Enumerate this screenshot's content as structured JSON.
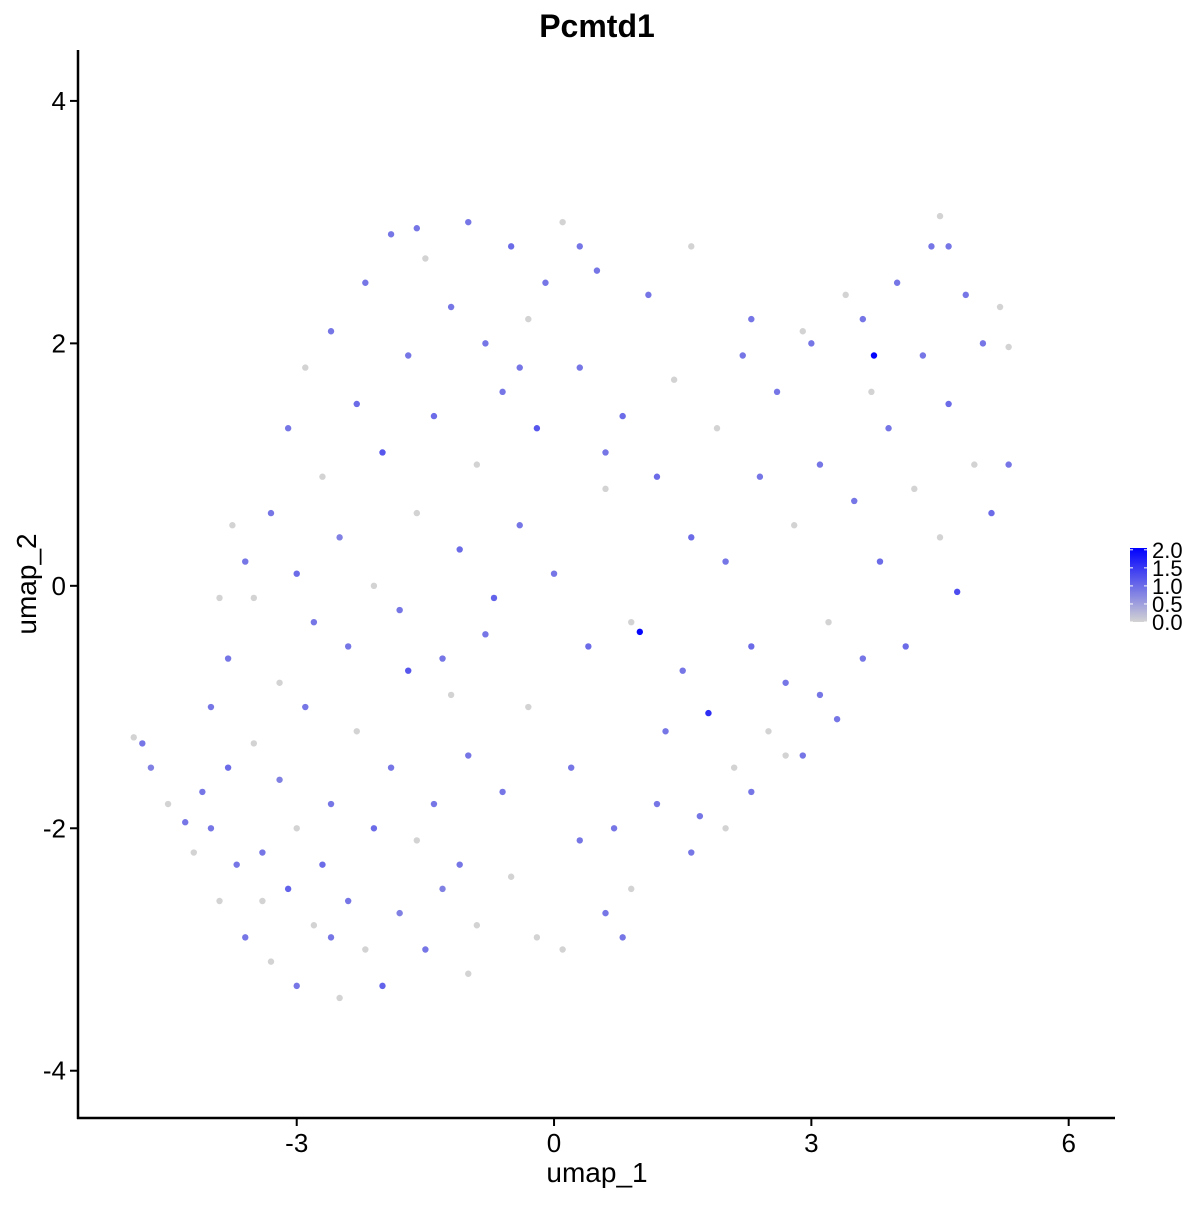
{
  "chart_data": {
    "type": "scatter",
    "title": "Pcmtd1",
    "xlabel": "umap_1",
    "ylabel": "umap_2",
    "x": [
      -4.8,
      -4.9,
      -4.7,
      -4.5,
      -4.2,
      -4.1,
      -4.0,
      -3.9,
      -3.8,
      -3.7,
      -3.6,
      -3.5,
      -3.4,
      -3.3,
      -3.2,
      -3.1,
      -3.0,
      -3.0,
      -2.9,
      -2.8,
      -2.7,
      -2.6,
      -2.5,
      -2.4,
      -2.3,
      -2.2,
      -2.1,
      -2.0,
      -1.9,
      -1.8,
      -1.7,
      -1.6,
      -1.5,
      -1.4,
      -1.3,
      -1.2,
      -1.1,
      -1.0,
      -0.9,
      -0.8,
      -3.8,
      -3.6,
      -3.5,
      -3.3,
      -3.2,
      -3.1,
      -3.0,
      -2.9,
      -2.8,
      -2.7,
      -2.6,
      -2.5,
      -2.4,
      -2.3,
      -2.2,
      -2.1,
      -2.0,
      -1.9,
      -1.8,
      -1.7,
      -1.6,
      -1.5,
      -1.4,
      -1.3,
      -1.2,
      -1.1,
      -1.0,
      -0.9,
      -0.8,
      -0.7,
      -0.6,
      -0.5,
      -0.4,
      -0.3,
      -0.2,
      -0.1,
      0.0,
      0.1,
      0.2,
      0.3,
      0.4,
      0.5,
      0.6,
      0.7,
      0.8,
      0.9,
      1.0,
      1.1,
      1.2,
      1.3,
      1.4,
      1.5,
      1.6,
      1.7,
      1.8,
      1.9,
      2.0,
      2.1,
      2.2,
      2.3,
      2.4,
      2.5,
      2.6,
      2.7,
      2.8,
      2.9,
      3.0,
      3.1,
      3.2,
      3.3,
      3.4,
      3.5,
      3.6,
      3.7,
      3.73,
      3.8,
      3.9,
      4.0,
      4.1,
      4.2,
      4.3,
      4.4,
      4.5,
      4.6,
      4.7,
      4.8,
      4.9,
      5.0,
      5.1,
      5.2,
      5.3,
      4.5,
      4.6,
      3.6,
      2.9,
      5.3,
      -0.5,
      -0.2,
      0.1,
      0.3,
      0.6,
      0.9,
      1.2,
      1.6,
      2.0,
      2.3,
      2.7,
      3.1,
      0.8,
      -1.0,
      -0.6,
      -2.6,
      -3.4,
      -4.3,
      -3.9,
      -4.0,
      -3.75,
      -0.3,
      -1.6,
      0.3,
      1.6,
      0.6,
      -0.4,
      2.3
    ],
    "y": [
      -1.3,
      -1.25,
      -1.5,
      -1.8,
      -2.2,
      -1.7,
      -2.0,
      -2.6,
      -1.5,
      -2.3,
      -2.9,
      -1.3,
      -2.2,
      -3.1,
      -1.6,
      -2.5,
      -2.0,
      -3.3,
      -1.0,
      -2.8,
      -2.3,
      -1.8,
      -3.4,
      -2.6,
      -1.2,
      -3.0,
      -2.0,
      -3.3,
      -1.5,
      -2.7,
      -0.7,
      -2.1,
      -3.0,
      -1.8,
      -2.5,
      -0.9,
      -2.3,
      -1.4,
      -2.8,
      -0.4,
      -0.6,
      0.2,
      -0.1,
      0.6,
      -0.8,
      1.3,
      0.1,
      1.8,
      -0.3,
      0.9,
      2.1,
      0.4,
      -0.5,
      1.5,
      2.5,
      0.0,
      1.1,
      2.9,
      -0.2,
      1.9,
      0.6,
      2.7,
      1.4,
      -0.6,
      2.3,
      0.3,
      3.0,
      1.0,
      2.0,
      -0.1,
      1.6,
      2.8,
      0.5,
      -1.0,
      1.3,
      2.5,
      0.1,
      3.0,
      -1.5,
      1.8,
      -0.5,
      2.6,
      0.8,
      -2.0,
      1.4,
      -0.3,
      -0.38,
      2.4,
      0.9,
      -1.2,
      1.7,
      -0.7,
      0.4,
      -1.9,
      -1.05,
      1.3,
      0.2,
      -1.5,
      1.9,
      -0.5,
      0.9,
      -1.2,
      1.6,
      -0.8,
      0.5,
      -1.4,
      2.0,
      1.0,
      -0.3,
      -1.1,
      2.4,
      0.7,
      -0.6,
      1.6,
      1.9,
      0.2,
      1.3,
      2.5,
      -0.5,
      0.8,
      1.9,
      2.8,
      0.4,
      1.5,
      -0.05,
      2.4,
      1.0,
      2.0,
      0.6,
      2.3,
      1.0,
      3.05,
      2.8,
      2.2,
      2.1,
      1.97,
      -2.4,
      -2.9,
      -3.0,
      -2.1,
      -2.7,
      -2.5,
      -1.8,
      -2.2,
      -2.0,
      -1.7,
      -1.4,
      -0.9,
      -2.9,
      -3.2,
      -1.7,
      -2.9,
      -2.6,
      -1.95,
      -0.1,
      -1.0,
      0.5,
      2.2,
      2.95,
      2.8,
      2.8,
      1.1,
      1.8,
      2.2
    ],
    "color_values": [
      0.9,
      0,
      0.8,
      0,
      0,
      0.9,
      0.9,
      0,
      1.0,
      0.9,
      0.9,
      0,
      0.9,
      0,
      0.8,
      1.1,
      0,
      0.9,
      0.9,
      0,
      1.0,
      0.9,
      0,
      0.9,
      0,
      0,
      1.0,
      1.1,
      0.9,
      0.8,
      1.2,
      0,
      0.9,
      0.9,
      0.8,
      0,
      0.9,
      0.9,
      0,
      0.9,
      0.9,
      0.9,
      0,
      0.9,
      0,
      0.9,
      1.0,
      0,
      0.9,
      0,
      0.9,
      0.8,
      0.9,
      1.0,
      0.9,
      0,
      1.2,
      0.9,
      0.9,
      0.9,
      0,
      0,
      1.0,
      0.9,
      0.9,
      1.0,
      0.9,
      0,
      0.9,
      1.1,
      0.9,
      1.0,
      0.9,
      0,
      1.2,
      0.9,
      0.9,
      0,
      0.9,
      0.9,
      1.0,
      0.9,
      0,
      0.9,
      1.0,
      0,
      2.0,
      0.9,
      1.0,
      0.9,
      0,
      0.9,
      1.0,
      0.9,
      1.6,
      0,
      0.9,
      0,
      0.9,
      1.0,
      0.9,
      0,
      0.9,
      0.9,
      0,
      0.9,
      0.9,
      0.9,
      0,
      0.9,
      0,
      0.9,
      0.9,
      0,
      2.0,
      1.0,
      0.9,
      0.9,
      1.0,
      0,
      0.9,
      0.9,
      0,
      1.0,
      1.3,
      0.9,
      0,
      0.9,
      1.0,
      0,
      0.9,
      0,
      0.9,
      0.9,
      0,
      0,
      0,
      0,
      0,
      0.9,
      0.9,
      0,
      0.9,
      0.9,
      0,
      0.9,
      0,
      0.9,
      0.9,
      0,
      0.9,
      0.9,
      0,
      0.9,
      0,
      0.9,
      0,
      0,
      0.9,
      0.9,
      0,
      0.9,
      0.9,
      0.9
    ],
    "xlim": [
      -5.55,
      6.54
    ],
    "ylim": [
      -4.39,
      4.42
    ],
    "xticks": [
      -3,
      0,
      3,
      6
    ],
    "yticks": [
      -4,
      -2,
      0,
      2,
      4
    ],
    "colorbar": {
      "colors": [
        "#d3d3d3",
        "#0000ff"
      ],
      "clim": [
        0,
        2.05
      ],
      "ticks": [
        {
          "value": 0,
          "label": "0.0"
        },
        0.5,
        {
          "value": 1,
          "label": "1.0"
        },
        1.5,
        {
          "value": 2,
          "label": "2.0"
        }
      ]
    }
  }
}
